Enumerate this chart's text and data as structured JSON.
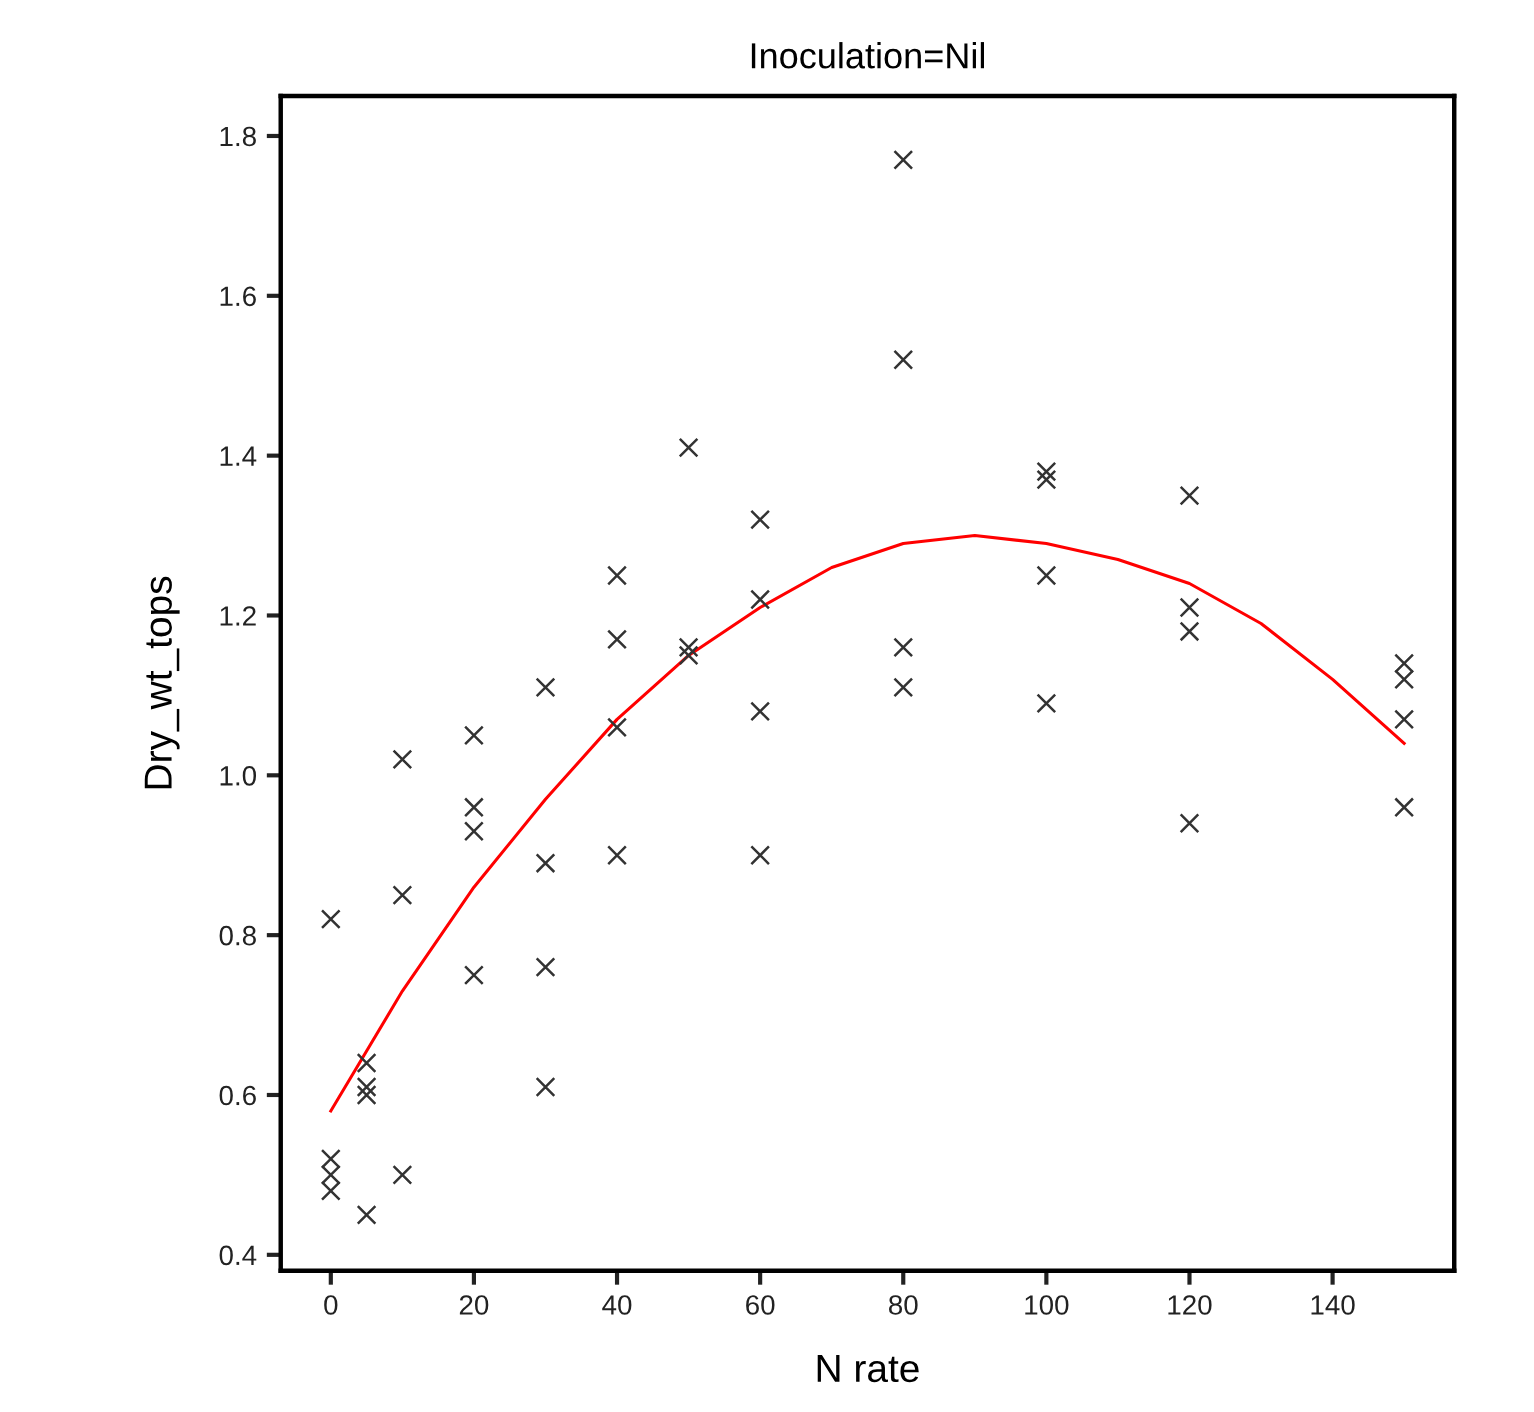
{
  "chart_data": {
    "type": "scatter",
    "title": "Inoculation=Nil",
    "xlabel": "N rate",
    "ylabel": "Dry_wt_tops",
    "xlim": [
      -7,
      157
    ],
    "xticks": [
      0,
      20,
      40,
      60,
      80,
      100,
      120,
      140
    ],
    "ylim": [
      0.38,
      1.85
    ],
    "yticks": [
      0.4,
      0.6,
      0.8,
      {
        "value": 1,
        "label": "1.0"
      },
      1.2,
      1.4,
      1.6,
      1.8
    ],
    "grid": false,
    "legend": false,
    "marker": "cross",
    "series": [
      {
        "color": "#333333",
        "x": [
          0,
          0,
          0,
          0,
          5,
          5,
          5,
          5,
          10,
          10,
          10,
          20,
          20,
          20,
          20,
          30,
          30,
          30,
          30,
          40,
          40,
          40,
          40,
          50,
          50,
          50,
          60,
          60,
          60,
          60,
          80,
          80,
          80,
          80,
          100,
          100,
          100,
          100,
          120,
          120,
          120,
          120,
          150,
          150,
          150,
          150
        ],
        "values": [
          0.82,
          0.52,
          0.5,
          0.48,
          0.64,
          0.61,
          0.6,
          0.45,
          1.02,
          0.85,
          0.5,
          1.05,
          0.96,
          0.93,
          0.75,
          1.11,
          0.89,
          0.76,
          0.61,
          1.25,
          1.17,
          1.06,
          0.9,
          1.41,
          1.16,
          1.15,
          1.32,
          1.22,
          1.08,
          0.9,
          1.77,
          1.52,
          1.16,
          1.11,
          1.38,
          1.37,
          1.25,
          1.09,
          1.35,
          1.21,
          1.18,
          0.94,
          1.14,
          1.12,
          1.07,
          0.96
        ]
      },
      {
        "type": "line",
        "color": "#ff0000",
        "marker": "none",
        "line_style": "solid",
        "x": [
          0,
          10,
          20,
          30,
          40,
          50,
          60,
          70,
          80,
          90,
          100,
          110,
          120,
          130,
          140,
          150
        ],
        "values": [
          0.58,
          0.73,
          0.86,
          0.97,
          1.07,
          1.15,
          1.21,
          1.26,
          1.29,
          1.3,
          1.29,
          1.27,
          1.24,
          1.19,
          1.12,
          1.04
        ]
      }
    ]
  }
}
